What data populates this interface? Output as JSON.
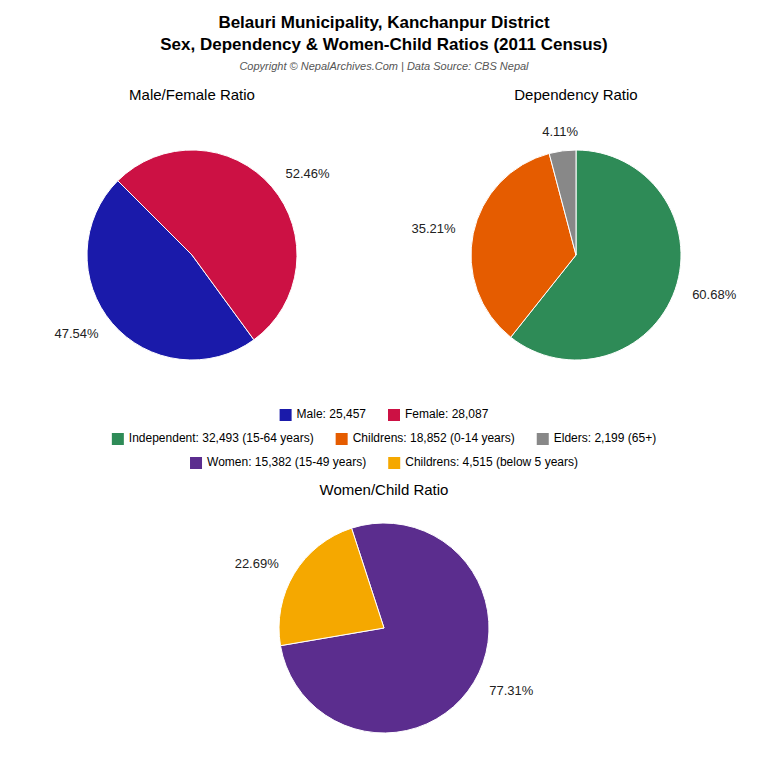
{
  "title": "Belauri Municipality, Kanchanpur District",
  "subtitle": "Sex, Dependency & Women-Child Ratios (2011 Census)",
  "annotations": [
    "Copyright © NepalArchives.Com | Data Source: CBS Nepal"
  ],
  "chart_data": [
    {
      "type": "pie",
      "title": "Male/Female Ratio",
      "categories": [
        "Male: 25,457",
        "Female: 28,087"
      ],
      "values": [
        47.54,
        52.46
      ],
      "value_labels": [
        "47.54%",
        "52.46%"
      ],
      "colors": [
        "#1a1aaa",
        "#cc1144"
      ],
      "data_labels": true
    },
    {
      "type": "pie",
      "title": "Dependency Ratio",
      "categories": [
        "Independent: 32,493 (15-64 years)",
        "Childrens: 18,852 (0-14 years)",
        "Elders: 2,199 (65+)"
      ],
      "values": [
        60.68,
        35.21,
        4.11
      ],
      "value_labels": [
        "60.68%",
        "35.21%",
        "4.11%"
      ],
      "colors": [
        "#2e8b57",
        "#e55c00",
        "#888888"
      ],
      "data_labels": true
    },
    {
      "type": "pie",
      "title": "Women/Child Ratio",
      "categories": [
        "Women: 15,382 (15-49 years)",
        "Childrens: 4,515 (below 5 years)"
      ],
      "values": [
        77.31,
        22.69
      ],
      "value_labels": [
        "77.31%",
        "22.69%"
      ],
      "colors": [
        "#5b2d8e",
        "#f5a800"
      ],
      "data_labels": true
    }
  ]
}
